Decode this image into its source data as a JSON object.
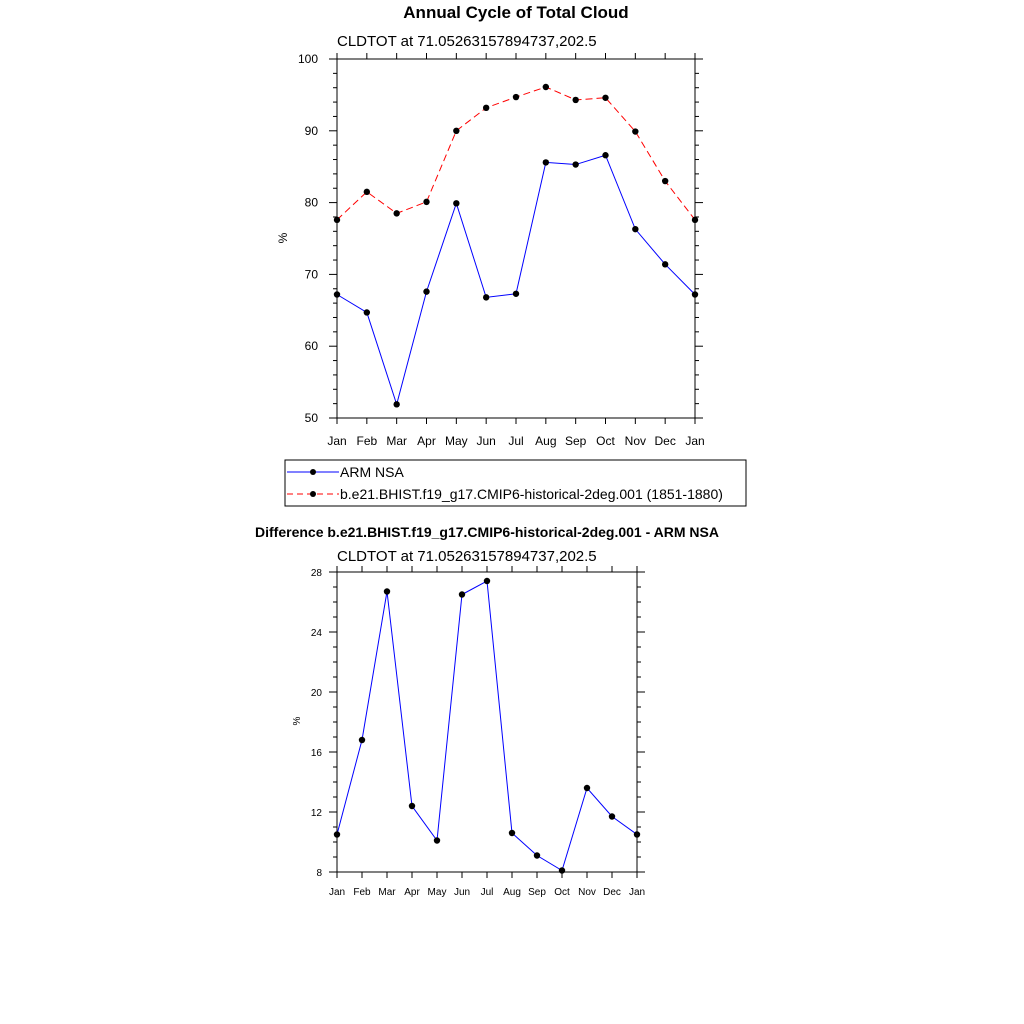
{
  "colors": {
    "model": "#ff0000",
    "obs": "#0000ff",
    "marker": "#000000",
    "frame": "#000000"
  },
  "chart_data": [
    {
      "type": "line",
      "title": "Annual Cycle of Total Cloud",
      "subtitle": "CLDTOT at 71.05263157894737,202.5",
      "ylabel": "%",
      "xlabel": "",
      "ylim": [
        50,
        100
      ],
      "yticks": [
        50,
        60,
        70,
        80,
        90,
        100
      ],
      "categories": [
        "Jan",
        "Feb",
        "Mar",
        "Apr",
        "May",
        "Jun",
        "Jul",
        "Aug",
        "Sep",
        "Oct",
        "Nov",
        "Dec",
        "Jan"
      ],
      "series": [
        {
          "name": "ARM NSA",
          "style": "solid",
          "color": "#0000ff",
          "values": [
            67.2,
            64.7,
            51.9,
            67.6,
            79.9,
            66.8,
            67.3,
            85.6,
            85.3,
            86.6,
            76.3,
            71.4,
            67.2
          ]
        },
        {
          "name": "b.e21.BHIST.f19_g17.CMIP6-historical-2deg.001 (1851-1880)",
          "style": "dashed",
          "color": "#ff0000",
          "values": [
            77.6,
            81.5,
            78.5,
            80.1,
            90.0,
            93.2,
            94.7,
            96.1,
            94.3,
            94.6,
            89.9,
            83.0,
            77.6
          ]
        }
      ],
      "legend_position": "below"
    },
    {
      "type": "line",
      "title": "Difference b.e21.BHIST.f19_g17.CMIP6-historical-2deg.001 - ARM NSA",
      "subtitle": "CLDTOT at 71.05263157894737,202.5",
      "ylabel": "%",
      "xlabel": "",
      "ylim": [
        8,
        28
      ],
      "yticks": [
        8,
        12,
        16,
        20,
        24,
        28
      ],
      "categories": [
        "Jan",
        "Feb",
        "Mar",
        "Apr",
        "May",
        "Jun",
        "Jul",
        "Aug",
        "Sep",
        "Oct",
        "Nov",
        "Dec",
        "Jan"
      ],
      "series": [
        {
          "name": "Difference",
          "style": "solid",
          "color": "#0000ff",
          "values": [
            10.5,
            16.8,
            26.7,
            12.4,
            10.1,
            26.5,
            27.4,
            10.6,
            9.1,
            8.1,
            13.6,
            11.7,
            10.5
          ]
        }
      ]
    }
  ]
}
